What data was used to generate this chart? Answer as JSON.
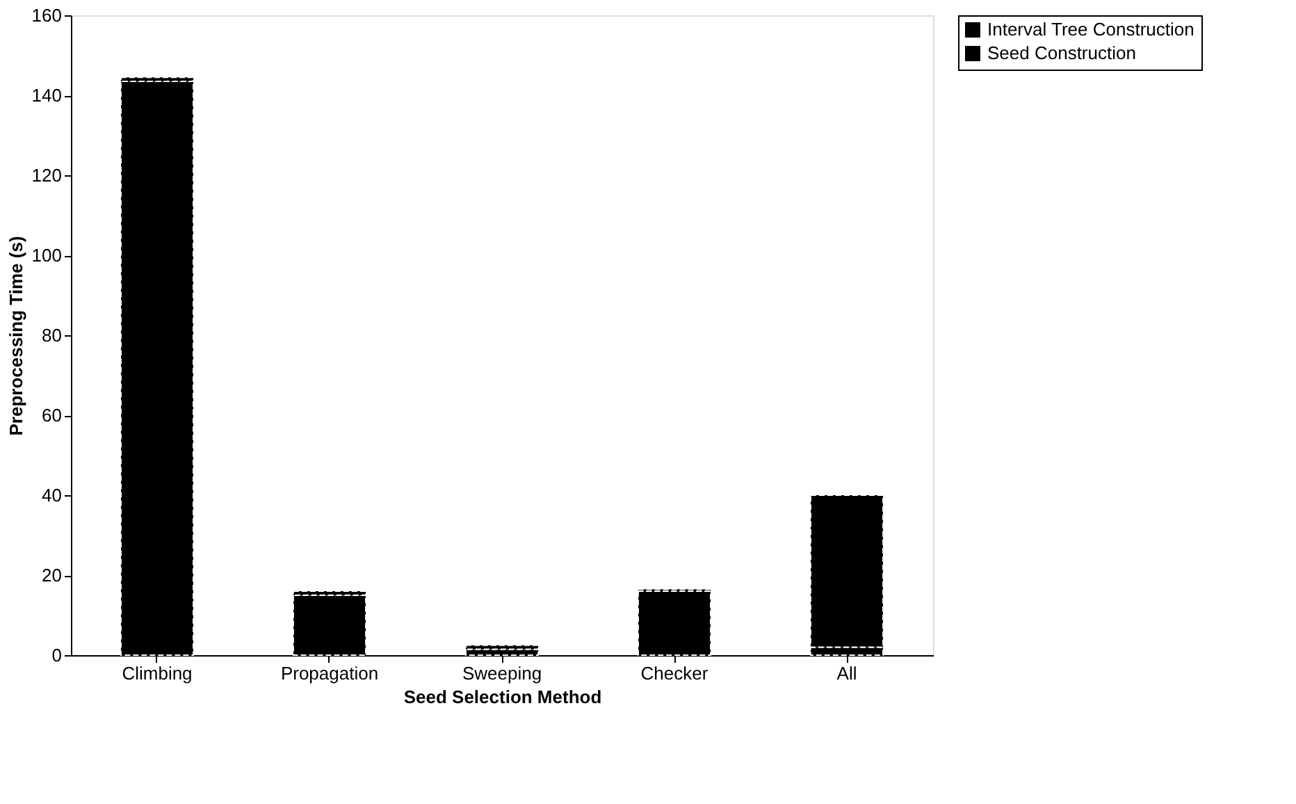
{
  "chart_data": {
    "type": "bar",
    "stacked": true,
    "xlabel": "Seed Selection Method",
    "ylabel": "Preprocessing Time (s)",
    "categories": [
      "Climbing",
      "Propagation",
      "Sweeping",
      "Checker",
      "All"
    ],
    "series": [
      {
        "name": "Seed Construction",
        "color": "#000000",
        "values": [
          143.5,
          15,
          1.5,
          16,
          2
        ]
      },
      {
        "name": "Interval Tree Construction",
        "color": "#000000",
        "values": [
          1,
          1,
          1,
          0.5,
          38
        ]
      }
    ],
    "ylim": [
      0,
      160
    ],
    "yticks": [
      0,
      20,
      40,
      60,
      80,
      100,
      120,
      140,
      160
    ],
    "grid": false,
    "legend": "right"
  }
}
